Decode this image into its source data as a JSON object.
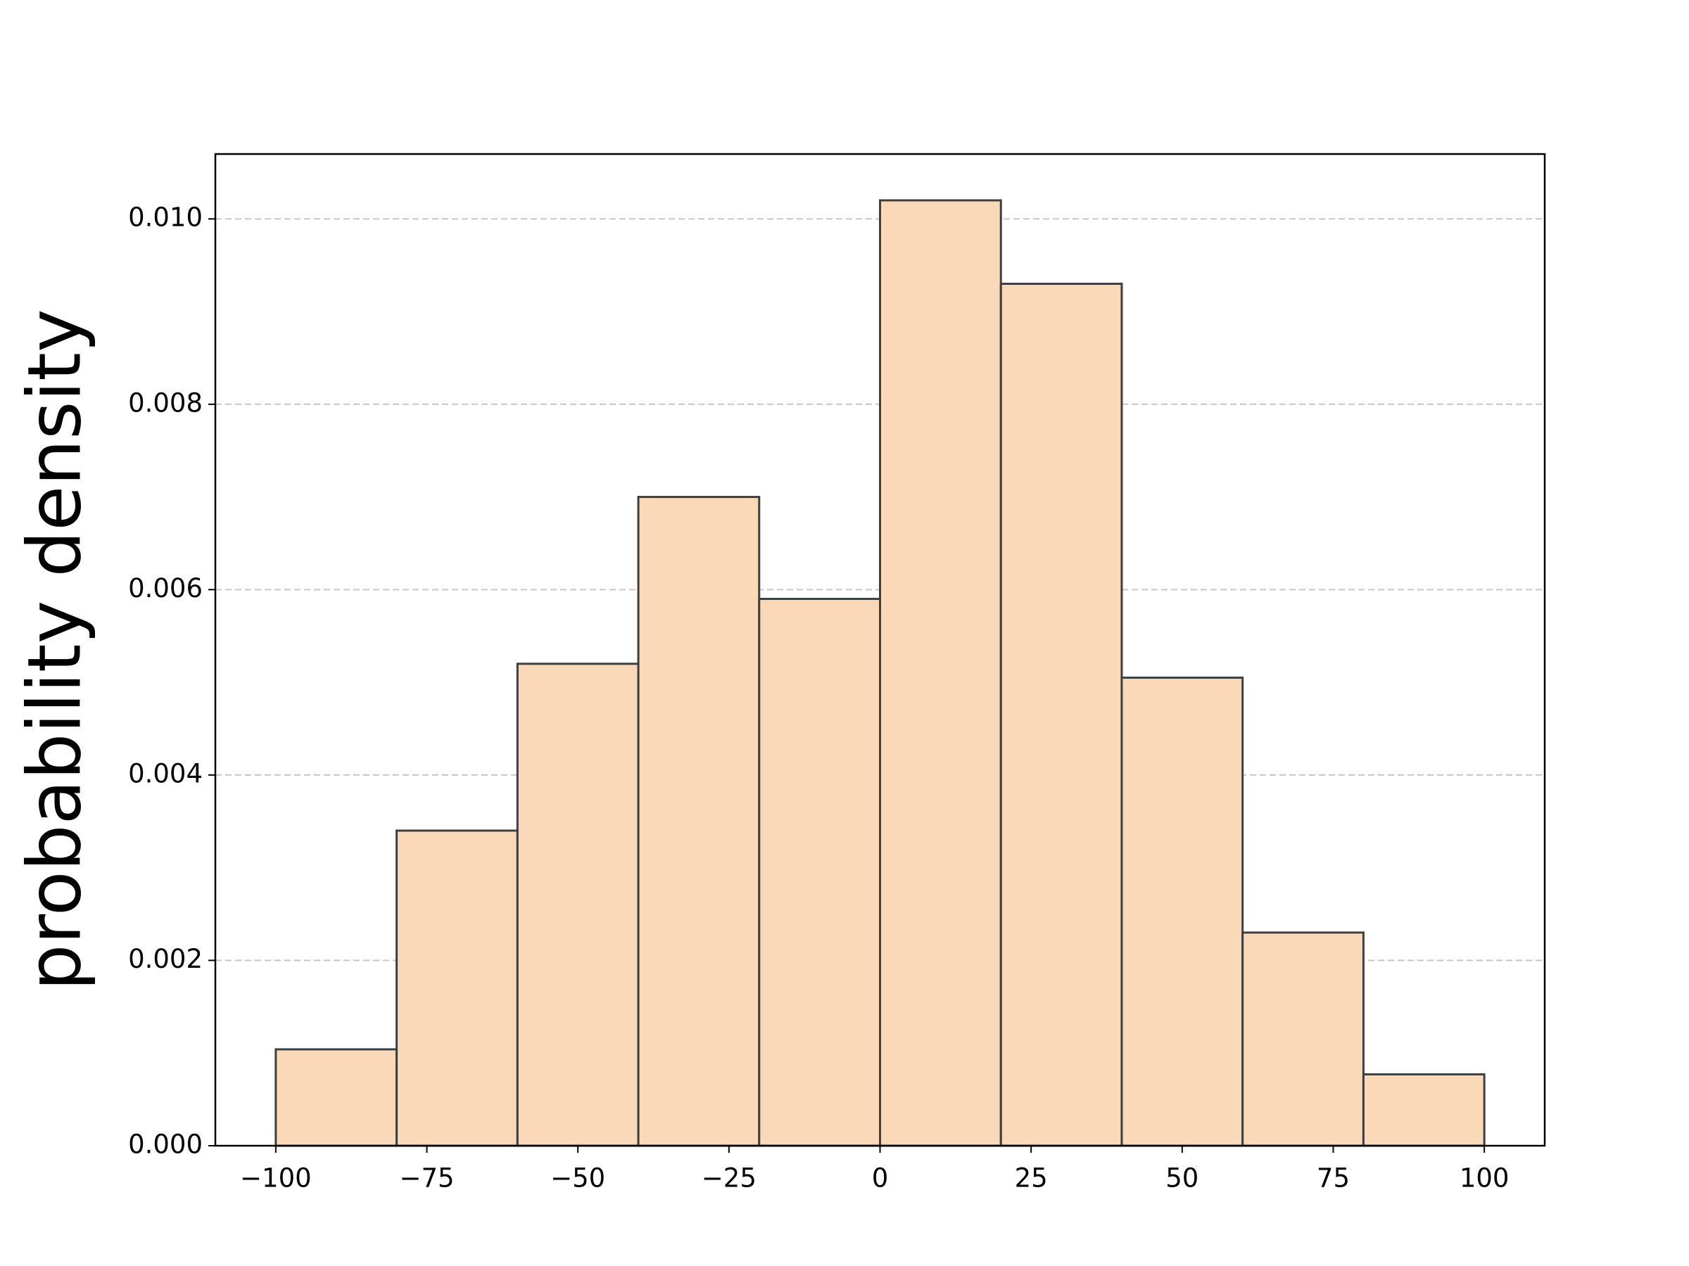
{
  "chart_data": {
    "type": "histogram",
    "ylabel": "probability density",
    "bins": [
      -100,
      -80,
      -60,
      -40,
      -20,
      0,
      20,
      40,
      60,
      80,
      100
    ],
    "values": [
      0.00104,
      0.0034,
      0.0052,
      0.007,
      0.0059,
      0.0102,
      0.0093,
      0.00505,
      0.0023,
      0.00077
    ],
    "color": "#fad9b8",
    "edgecolor": "#3f3f3f",
    "xlim": [
      -110,
      110
    ],
    "ylim": [
      0,
      0.0107
    ],
    "xticks": [
      {
        "value": -100,
        "label": "−100"
      },
      {
        "value": -75,
        "label": "−75"
      },
      {
        "value": -50,
        "label": "−50"
      },
      {
        "value": -25,
        "label": "−25"
      },
      0,
      25,
      50,
      75,
      100
    ],
    "yticks": [
      {
        "value": 0,
        "label": "0.000"
      },
      {
        "value": 0.002,
        "label": "0.002"
      },
      {
        "value": 0.004,
        "label": "0.004"
      },
      {
        "value": 0.006,
        "label": "0.006"
      },
      {
        "value": 0.008,
        "label": "0.008"
      },
      {
        "value": 0.01,
        "label": "0.010"
      }
    ],
    "grid": true
  }
}
